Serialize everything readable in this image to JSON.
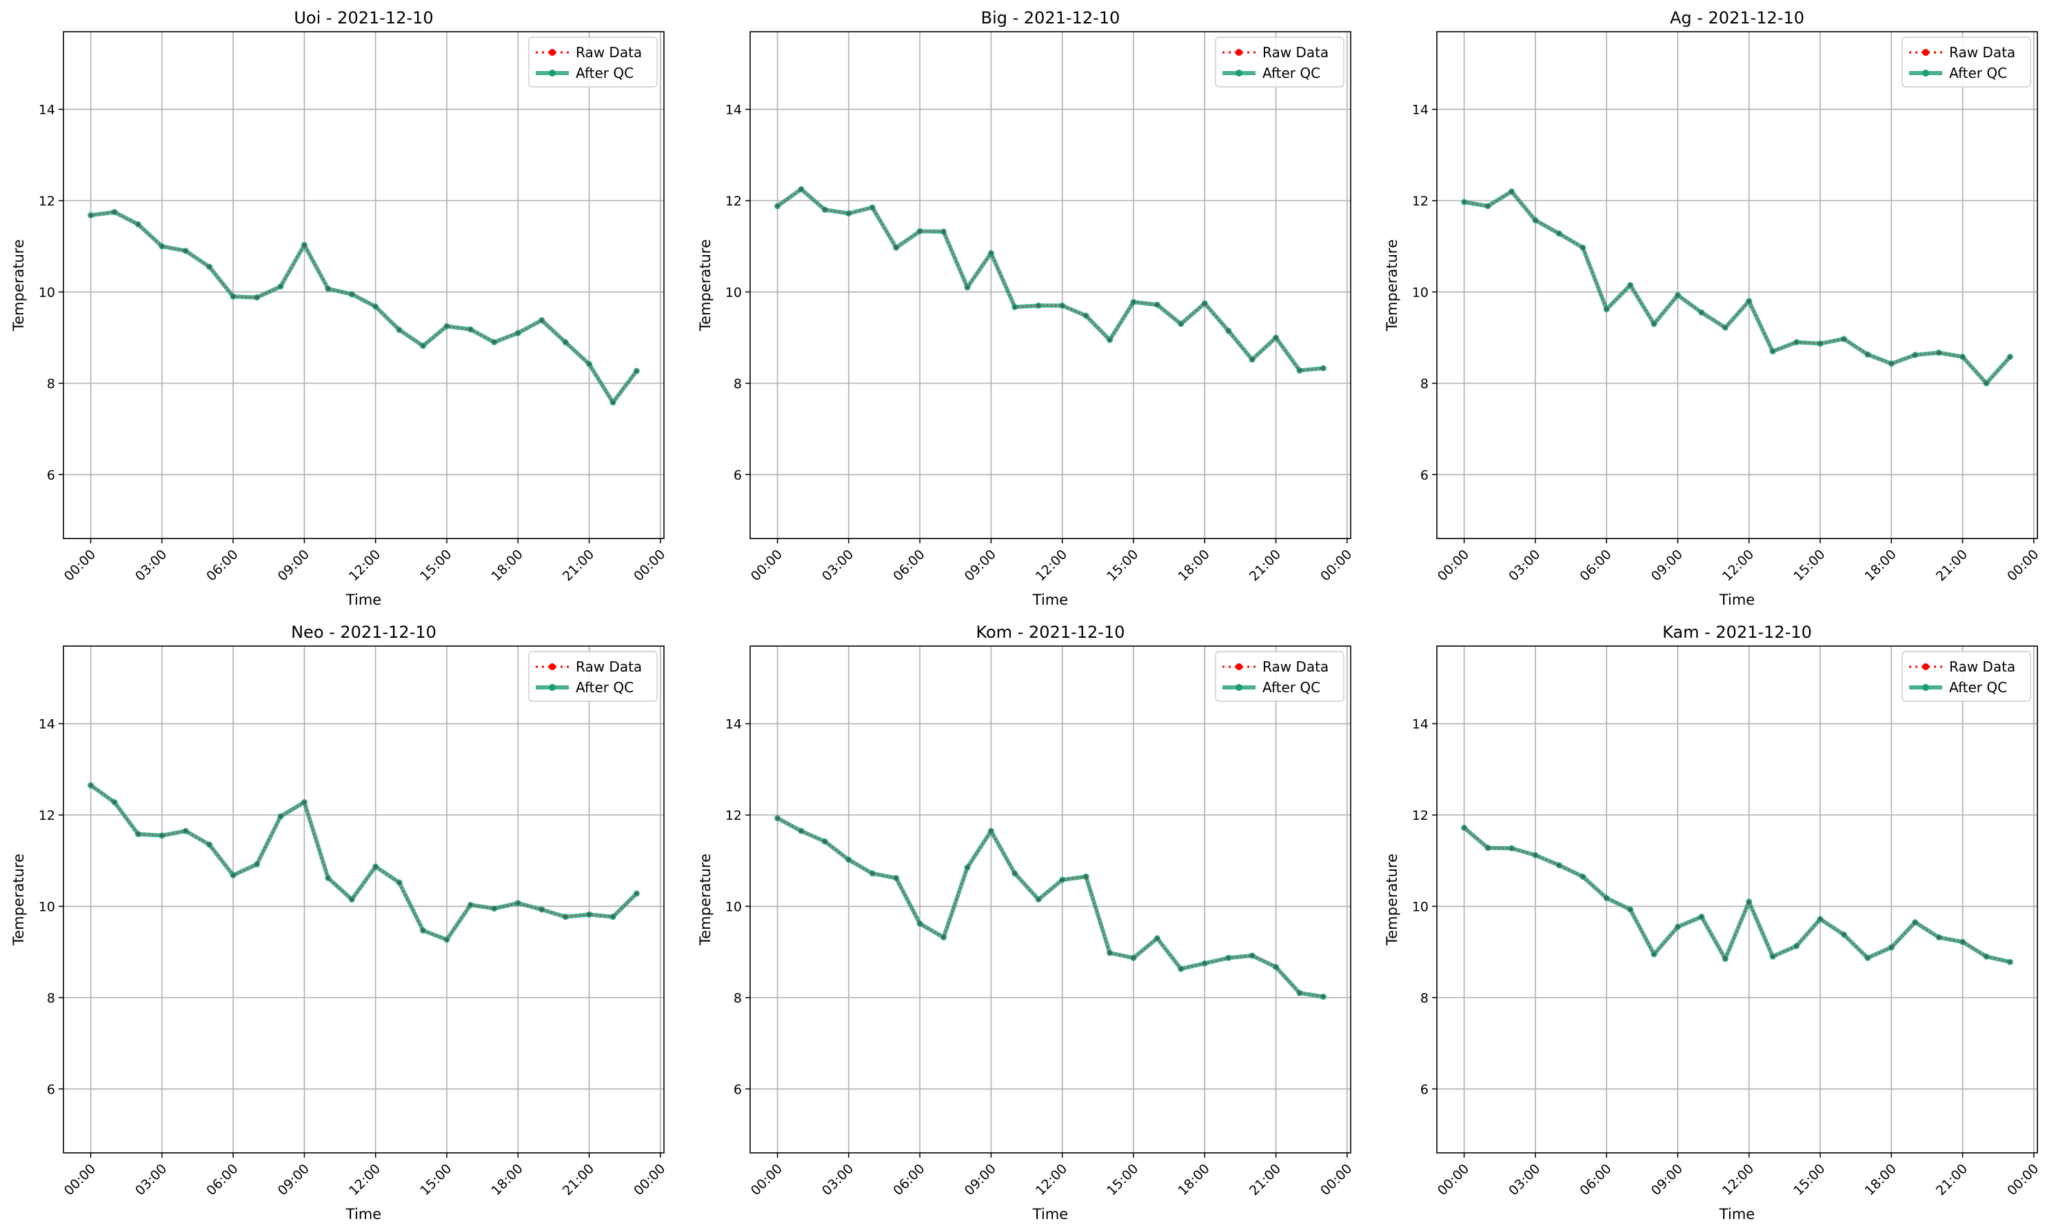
{
  "legend": {
    "raw_label": "Raw Data",
    "qc_label": "After QC"
  },
  "colors": {
    "raw": "#ff0000",
    "qc": "#1b9e77",
    "grid": "#b0b0b0"
  },
  "chart_data": [
    {
      "type": "line",
      "title": "Uoi - 2021-12-10",
      "xlabel": "Time",
      "ylabel": "Temperature",
      "x": [
        "00:00",
        "01:00",
        "02:00",
        "03:00",
        "04:00",
        "05:00",
        "06:00",
        "07:00",
        "08:00",
        "09:00",
        "10:00",
        "11:00",
        "12:00",
        "13:00",
        "14:00",
        "15:00",
        "16:00",
        "17:00",
        "18:00",
        "19:00",
        "20:00",
        "21:00",
        "22:00",
        "23:00"
      ],
      "x_ticks": [
        "00:00",
        "03:00",
        "06:00",
        "09:00",
        "12:00",
        "15:00",
        "18:00",
        "21:00",
        "00:00"
      ],
      "y_ticks": [
        6,
        8,
        10,
        12,
        14
      ],
      "ylim": [
        4.6,
        15.7
      ],
      "grid": true,
      "legend_position": "top-right",
      "series": [
        {
          "name": "Raw Data",
          "values": [
            11.68,
            11.75,
            11.48,
            11.0,
            10.9,
            10.55,
            9.9,
            9.88,
            10.12,
            11.03,
            10.07,
            9.95,
            9.68,
            9.17,
            8.82,
            9.25,
            9.18,
            8.9,
            9.1,
            9.38,
            8.9,
            8.42,
            7.58,
            8.27
          ]
        },
        {
          "name": "After QC",
          "values": [
            11.68,
            11.75,
            11.48,
            11.0,
            10.9,
            10.55,
            9.9,
            9.88,
            10.12,
            11.03,
            10.07,
            9.95,
            9.68,
            9.17,
            8.82,
            9.25,
            9.18,
            8.9,
            9.1,
            9.38,
            8.9,
            8.42,
            7.58,
            8.27
          ]
        }
      ]
    },
    {
      "type": "line",
      "title": "Big - 2021-12-10",
      "xlabel": "Time",
      "ylabel": "Temperature",
      "x": [
        "00:00",
        "01:00",
        "02:00",
        "03:00",
        "04:00",
        "05:00",
        "06:00",
        "07:00",
        "08:00",
        "09:00",
        "10:00",
        "11:00",
        "12:00",
        "13:00",
        "14:00",
        "15:00",
        "16:00",
        "17:00",
        "18:00",
        "19:00",
        "20:00",
        "21:00",
        "22:00",
        "23:00"
      ],
      "x_ticks": [
        "00:00",
        "03:00",
        "06:00",
        "09:00",
        "12:00",
        "15:00",
        "18:00",
        "21:00",
        "00:00"
      ],
      "y_ticks": [
        6,
        8,
        10,
        12,
        14
      ],
      "ylim": [
        4.6,
        15.7
      ],
      "grid": true,
      "legend_position": "top-right",
      "series": [
        {
          "name": "Raw Data",
          "values": [
            11.88,
            12.25,
            11.8,
            11.72,
            11.85,
            10.97,
            11.33,
            11.32,
            10.1,
            10.85,
            9.67,
            9.7,
            9.7,
            9.48,
            8.95,
            9.78,
            9.72,
            9.3,
            9.75,
            9.15,
            8.52,
            9.0,
            8.28,
            8.33
          ]
        },
        {
          "name": "After QC",
          "values": [
            11.88,
            12.25,
            11.8,
            11.72,
            11.85,
            10.97,
            11.33,
            11.32,
            10.1,
            10.85,
            9.67,
            9.7,
            9.7,
            9.48,
            8.95,
            9.78,
            9.72,
            9.3,
            9.75,
            9.15,
            8.52,
            9.0,
            8.28,
            8.33
          ]
        }
      ]
    },
    {
      "type": "line",
      "title": "Ag - 2021-12-10",
      "xlabel": "Time",
      "ylabel": "Temperature",
      "x": [
        "00:00",
        "01:00",
        "02:00",
        "03:00",
        "04:00",
        "05:00",
        "06:00",
        "07:00",
        "08:00",
        "09:00",
        "10:00",
        "11:00",
        "12:00",
        "13:00",
        "14:00",
        "15:00",
        "16:00",
        "17:00",
        "18:00",
        "19:00",
        "20:00",
        "21:00",
        "22:00",
        "23:00"
      ],
      "x_ticks": [
        "00:00",
        "03:00",
        "06:00",
        "09:00",
        "12:00",
        "15:00",
        "18:00",
        "21:00",
        "00:00"
      ],
      "y_ticks": [
        6,
        8,
        10,
        12,
        14
      ],
      "ylim": [
        4.6,
        15.7
      ],
      "grid": true,
      "legend_position": "top-right",
      "series": [
        {
          "name": "Raw Data",
          "values": [
            11.97,
            11.88,
            12.2,
            11.57,
            11.28,
            10.97,
            9.62,
            10.15,
            9.3,
            9.93,
            9.55,
            9.22,
            9.8,
            8.7,
            8.9,
            8.87,
            8.97,
            8.63,
            8.43,
            8.62,
            8.67,
            8.58,
            8.0,
            8.58
          ]
        },
        {
          "name": "After QC",
          "values": [
            11.97,
            11.88,
            12.2,
            11.57,
            11.28,
            10.97,
            9.62,
            10.15,
            9.3,
            9.93,
            9.55,
            9.22,
            9.8,
            8.7,
            8.9,
            8.87,
            8.97,
            8.63,
            8.43,
            8.62,
            8.67,
            8.58,
            8.0,
            8.58
          ]
        }
      ]
    },
    {
      "type": "line",
      "title": "Neo - 2021-12-10",
      "xlabel": "Time",
      "ylabel": "Temperature",
      "x": [
        "00:00",
        "01:00",
        "02:00",
        "03:00",
        "04:00",
        "05:00",
        "06:00",
        "07:00",
        "08:00",
        "09:00",
        "10:00",
        "11:00",
        "12:00",
        "13:00",
        "14:00",
        "15:00",
        "16:00",
        "17:00",
        "18:00",
        "19:00",
        "20:00",
        "21:00",
        "22:00",
        "23:00"
      ],
      "x_ticks": [
        "00:00",
        "03:00",
        "06:00",
        "09:00",
        "12:00",
        "15:00",
        "18:00",
        "21:00",
        "00:00"
      ],
      "y_ticks": [
        6,
        8,
        10,
        12,
        14
      ],
      "ylim": [
        4.6,
        15.7
      ],
      "grid": true,
      "legend_position": "top-right",
      "series": [
        {
          "name": "Raw Data",
          "values": [
            12.65,
            12.28,
            11.58,
            11.55,
            11.65,
            11.35,
            10.68,
            10.92,
            11.97,
            12.28,
            10.62,
            10.15,
            10.87,
            10.52,
            9.47,
            9.27,
            10.03,
            9.95,
            10.07,
            9.93,
            9.77,
            9.82,
            9.77,
            10.28
          ]
        },
        {
          "name": "After QC",
          "values": [
            12.65,
            12.28,
            11.58,
            11.55,
            11.65,
            11.35,
            10.68,
            10.92,
            11.97,
            12.28,
            10.62,
            10.15,
            10.87,
            10.52,
            9.47,
            9.27,
            10.03,
            9.95,
            10.07,
            9.93,
            9.77,
            9.82,
            9.77,
            10.28
          ]
        }
      ]
    },
    {
      "type": "line",
      "title": "Kom - 2021-12-10",
      "xlabel": "Time",
      "ylabel": "Temperature",
      "x": [
        "00:00",
        "01:00",
        "02:00",
        "03:00",
        "04:00",
        "05:00",
        "06:00",
        "07:00",
        "08:00",
        "09:00",
        "10:00",
        "11:00",
        "12:00",
        "13:00",
        "14:00",
        "15:00",
        "16:00",
        "17:00",
        "18:00",
        "19:00",
        "20:00",
        "21:00",
        "22:00",
        "23:00"
      ],
      "x_ticks": [
        "00:00",
        "03:00",
        "06:00",
        "09:00",
        "12:00",
        "15:00",
        "18:00",
        "21:00",
        "00:00"
      ],
      "y_ticks": [
        6,
        8,
        10,
        12,
        14
      ],
      "ylim": [
        4.6,
        15.7
      ],
      "grid": true,
      "legend_position": "top-right",
      "series": [
        {
          "name": "Raw Data",
          "values": [
            11.93,
            11.65,
            11.42,
            11.02,
            10.72,
            10.62,
            9.62,
            9.32,
            10.85,
            11.65,
            10.72,
            10.15,
            10.58,
            10.65,
            8.98,
            8.87,
            9.3,
            8.63,
            8.75,
            8.87,
            8.92,
            8.67,
            8.1,
            8.02
          ]
        },
        {
          "name": "After QC",
          "values": [
            11.93,
            11.65,
            11.42,
            11.02,
            10.72,
            10.62,
            9.62,
            9.32,
            10.85,
            11.65,
            10.72,
            10.15,
            10.58,
            10.65,
            8.98,
            8.87,
            9.3,
            8.63,
            8.75,
            8.87,
            8.92,
            8.67,
            8.1,
            8.02
          ]
        }
      ]
    },
    {
      "type": "line",
      "title": "Kam - 2021-12-10",
      "xlabel": "Time",
      "ylabel": "Temperature",
      "x": [
        "00:00",
        "01:00",
        "02:00",
        "03:00",
        "04:00",
        "05:00",
        "06:00",
        "07:00",
        "08:00",
        "09:00",
        "10:00",
        "11:00",
        "12:00",
        "13:00",
        "14:00",
        "15:00",
        "16:00",
        "17:00",
        "18:00",
        "19:00",
        "20:00",
        "21:00",
        "22:00",
        "23:00"
      ],
      "x_ticks": [
        "00:00",
        "03:00",
        "06:00",
        "09:00",
        "12:00",
        "15:00",
        "18:00",
        "21:00",
        "00:00"
      ],
      "y_ticks": [
        6,
        8,
        10,
        12,
        14
      ],
      "ylim": [
        4.6,
        15.7
      ],
      "grid": true,
      "legend_position": "top-right",
      "series": [
        {
          "name": "Raw Data",
          "values": [
            11.72,
            11.28,
            11.27,
            11.12,
            10.9,
            10.65,
            10.18,
            9.93,
            8.95,
            9.55,
            9.77,
            8.85,
            10.1,
            8.9,
            9.13,
            9.72,
            9.38,
            8.87,
            9.1,
            9.65,
            9.32,
            9.22,
            8.9,
            8.78
          ]
        },
        {
          "name": "After QC",
          "values": [
            11.72,
            11.28,
            11.27,
            11.12,
            10.9,
            10.65,
            10.18,
            9.93,
            8.95,
            9.55,
            9.77,
            8.85,
            10.1,
            8.9,
            9.13,
            9.72,
            9.38,
            8.87,
            9.1,
            9.65,
            9.32,
            9.22,
            8.9,
            8.78
          ]
        }
      ]
    }
  ]
}
